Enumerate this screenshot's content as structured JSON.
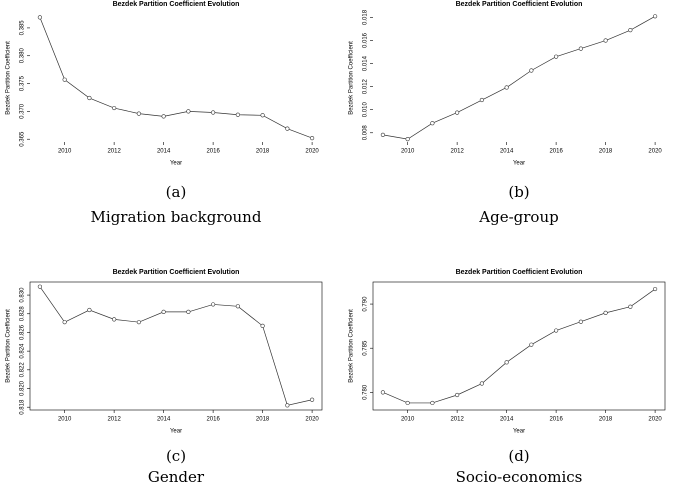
{
  "chart_data": [
    {
      "type": "line",
      "title": "Bezdek Partition  Coefficient Evolution",
      "xlabel": "Year",
      "ylabel": "Bezdek Partition Coefficient",
      "x": [
        2009,
        2010,
        2011,
        2012,
        2013,
        2014,
        2015,
        2016,
        2017,
        2018,
        2019,
        2020
      ],
      "values": [
        0.3869,
        0.3757,
        0.3724,
        0.3706,
        0.3696,
        0.3691,
        0.37,
        0.3698,
        0.3694,
        0.3693,
        0.3669,
        0.3652
      ],
      "color": "#333333",
      "xlim": [
        2008.6,
        2020.4
      ],
      "ylim": [
        0.3645,
        0.3875
      ],
      "xticks": [
        2010,
        2012,
        2014,
        2016,
        2018,
        2020
      ],
      "yticks": [
        0.365,
        {
          "value": 0.37,
          "label": "0.370"
        },
        0.375,
        {
          "value": 0.38,
          "label": "0.380"
        },
        0.385
      ],
      "box": false,
      "caption_label": "(a)",
      "caption": "Migration background"
    },
    {
      "type": "line",
      "title": "Bezdek Partition Coefficient Evolution",
      "xlabel": "Year",
      "ylabel": "Bezdek Partition Coefficient",
      "x": [
        2009,
        2010,
        2011,
        2012,
        2013,
        2014,
        2015,
        2016,
        2017,
        2018,
        2019,
        2020
      ],
      "values": [
        0.00782,
        0.00745,
        0.00883,
        0.00975,
        0.01084,
        0.01193,
        0.0134,
        0.0146,
        0.0153,
        0.016,
        0.0169,
        0.0181
      ],
      "color": "#333333",
      "xlim": [
        2008.6,
        2020.4
      ],
      "ylim": [
        0.0072,
        0.0183
      ],
      "xticks": [
        2010,
        2012,
        2014,
        2016,
        2018,
        2020
      ],
      "yticks": [
        0.008,
        {
          "value": 0.01,
          "label": "0.010"
        },
        0.012,
        0.014,
        0.016,
        0.018
      ],
      "box": false,
      "caption_label": "(b)",
      "caption": "Age-group"
    },
    {
      "type": "line",
      "title": "Bezdek Partition Coefficient Evolution",
      "xlabel": "Year",
      "ylabel": "Bezdek Partition Coefficient",
      "x": [
        2009,
        2010,
        2011,
        2012,
        2013,
        2014,
        2015,
        2016,
        2017,
        2018,
        2019,
        2020
      ],
      "values": [
        0.8309,
        0.8271,
        0.8284,
        0.8274,
        0.8271,
        0.8282,
        0.8282,
        0.829,
        0.8288,
        0.8267,
        0.8182,
        0.8188
      ],
      "color": "#333333",
      "xlim": [
        2008.6,
        2020.4
      ],
      "ylim": [
        0.8177,
        0.8314
      ],
      "xticks": [
        2010,
        2012,
        2014,
        2016,
        2018,
        2020
      ],
      "yticks": [
        0.818,
        {
          "value": 0.82,
          "label": "0.820"
        },
        0.822,
        0.824,
        0.826,
        0.828,
        {
          "value": 0.83,
          "label": "0.830"
        }
      ],
      "box": true,
      "caption_label": "(c)",
      "caption": "Gender"
    },
    {
      "type": "line",
      "title": "Bezdek Partition Coefficient Evolution",
      "xlabel": "Year",
      "ylabel": "Bezdek Partition Coefficient",
      "x": [
        2009,
        2010,
        2011,
        2012,
        2013,
        2014,
        2015,
        2016,
        2017,
        2018,
        2019,
        2020
      ],
      "values": [
        0.78,
        0.7788,
        0.7788,
        0.7797,
        0.781,
        0.7834,
        0.7854,
        0.787,
        0.788,
        0.789,
        0.7897,
        0.7917
      ],
      "color": "#333333",
      "xlim": [
        2008.6,
        2020.4
      ],
      "ylim": [
        0.778,
        0.7925
      ],
      "xticks": [
        2010,
        2012,
        2014,
        2016,
        2018,
        2020
      ],
      "yticks": [
        {
          "value": 0.78,
          "label": "0.780"
        },
        0.785,
        {
          "value": 0.79,
          "label": "0.790"
        }
      ],
      "box": true,
      "caption_label": "(d)",
      "caption": "Socio-economics"
    }
  ]
}
